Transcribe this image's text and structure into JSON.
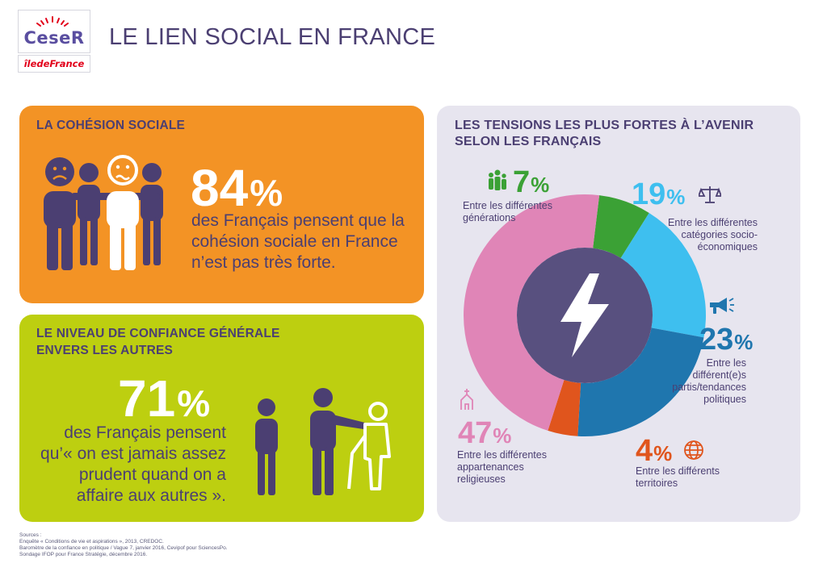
{
  "header": {
    "logo_ceser": "CeseR",
    "logo_idf": "îledeFrance",
    "title": "LE LIEN SOCIAL EN FRANCE"
  },
  "cohesion": {
    "title": "LA COHÉSION SOCIALE",
    "number": "84",
    "percent": "%",
    "text": "des Français pensent que la cohésion sociale en France n’est pas très forte."
  },
  "confiance": {
    "title_line1": "LE NIVEAU DE CONFIANCE GÉNÉRALE",
    "title_line2": "ENVERS LES AUTRES",
    "number": "71",
    "percent": "%",
    "text_lines": [
      "des Français pensent",
      "qu’« on est jamais assez",
      "prudent quand on a",
      "affaire aux autres »."
    ]
  },
  "tensions": {
    "title_line1": "LES TENSIONS LES PLUS FORTES À L’AVENIR",
    "title_line2": "SELON LES FRANÇAIS"
  },
  "chart_data": {
    "type": "pie",
    "title": "LES TENSIONS LES PLUS FORTES À L’AVENIR SELON LES FRANÇAIS",
    "unit": "%",
    "categories": [
      "Entre les différentes générations",
      "Entre les différentes catégories socio-économiques",
      "Entre les différent(e)s partis/tendances politiques",
      "Entre les différents territoires",
      "Entre les différentes appartenances religieuses"
    ],
    "values": [
      7,
      19,
      23,
      4,
      47
    ]
  },
  "segments": [
    {
      "value": "7",
      "label_lines": [
        "Entre les différentes",
        "générations"
      ],
      "icon": "people-group-icon",
      "color": "#3ba135"
    },
    {
      "value": "19",
      "label_lines": [
        "Entre les différentes",
        "catégories socio-",
        "économiques"
      ],
      "icon": "scales-icon",
      "color": "#3ebfef"
    },
    {
      "value": "23",
      "label_lines": [
        "Entre les",
        "différent(e)s",
        "partis/tendances",
        "politiques"
      ],
      "icon": "megaphone-icon",
      "color": "#1f76ae"
    },
    {
      "value": "4",
      "label_lines": [
        "Entre les différents",
        "territoires"
      ],
      "icon": "globe-icon",
      "color": "#e0551d"
    },
    {
      "value": "47",
      "label_lines": [
        "Entre les différentes",
        "appartenances",
        "religieuses"
      ],
      "icon": "church-icon",
      "color": "#e085b7"
    }
  ],
  "percent_sign": "%",
  "colors": {
    "orange": "#f39325",
    "green": "#bdcf10",
    "lilac": "#e7e5ef",
    "purple": "#4b3f72",
    "inner": "#58507f"
  },
  "sources": [
    "Sources :",
    "Enquête « Conditions de vie et aspirations », 2013, CREDOC.",
    "Baromètre de la confiance en politique / Vague 7, janvier 2016, Cevipof pour SciencesPo.",
    "Sondage IFOP pour France Stratégie, décembre 2016."
  ]
}
